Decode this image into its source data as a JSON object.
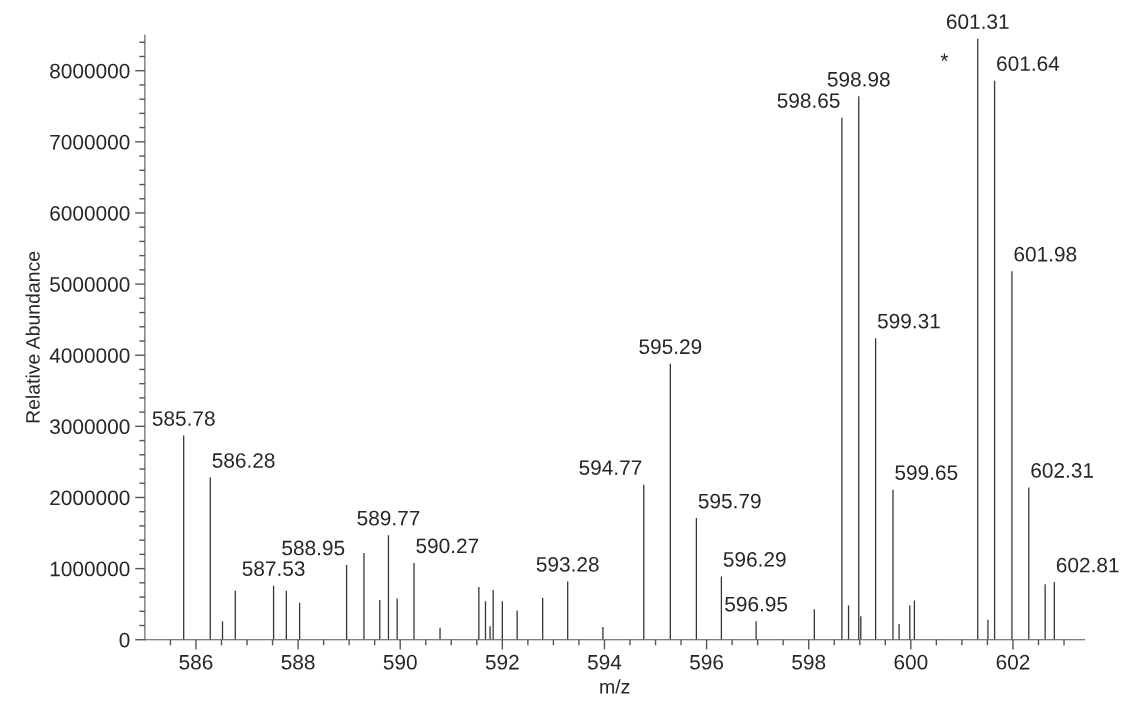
{
  "chart_data": {
    "type": "bar",
    "xlabel": "m/z",
    "ylabel": "Relative Abundance",
    "color": "#333333",
    "grid": false,
    "legend": false,
    "x": [
      585.76,
      586.28,
      586.52,
      586.77,
      587.52,
      587.77,
      588.03,
      588.95,
      589.29,
      589.6,
      589.77,
      589.94,
      590.27,
      590.78,
      591.54,
      591.67,
      591.76,
      591.82,
      592.0,
      592.29,
      592.79,
      593.28,
      593.97,
      594.77,
      595.29,
      595.8,
      596.29,
      596.97,
      598.11,
      598.65,
      598.78,
      598.98,
      599.02,
      599.31,
      599.65,
      599.77,
      599.98,
      600.07,
      601.31,
      601.51,
      601.64,
      601.98,
      602.31,
      602.63,
      602.81
    ],
    "values": [
      2870000,
      2280000,
      260000,
      690000,
      760000,
      690000,
      520000,
      1050000,
      1220000,
      560000,
      1470000,
      580000,
      1080000,
      170000,
      740000,
      540000,
      190000,
      700000,
      540000,
      410000,
      590000,
      820000,
      180000,
      2180000,
      3880000,
      1710000,
      890000,
      260000,
      430000,
      7340000,
      480000,
      7640000,
      330000,
      4240000,
      2110000,
      220000,
      480000,
      550000,
      8450000,
      280000,
      7860000,
      5180000,
      2140000,
      780000,
      810000
    ],
    "xlim": [
      585,
      603.4
    ],
    "ylim": [
      0,
      8500000
    ],
    "xticks": [
      {
        "value": 585.5,
        "label": null
      },
      {
        "value": 586,
        "label": "586"
      },
      {
        "value": 586.5,
        "label": null
      },
      {
        "value": 587,
        "label": null
      },
      {
        "value": 587.5,
        "label": null
      },
      {
        "value": 588,
        "label": "588"
      },
      {
        "value": 588.5,
        "label": null
      },
      {
        "value": 589,
        "label": null
      },
      {
        "value": 589.5,
        "label": null
      },
      {
        "value": 590,
        "label": "590"
      },
      {
        "value": 590.5,
        "label": null
      },
      {
        "value": 591,
        "label": null
      },
      {
        "value": 591.5,
        "label": null
      },
      {
        "value": 592,
        "label": "592"
      },
      {
        "value": 592.5,
        "label": null
      },
      {
        "value": 593,
        "label": null
      },
      {
        "value": 593.5,
        "label": null
      },
      {
        "value": 594,
        "label": "594"
      },
      {
        "value": 594.5,
        "label": null
      },
      {
        "value": 595,
        "label": null
      },
      {
        "value": 595.5,
        "label": null
      },
      {
        "value": 596,
        "label": "596"
      },
      {
        "value": 596.5,
        "label": null
      },
      {
        "value": 597,
        "label": null
      },
      {
        "value": 597.5,
        "label": null
      },
      {
        "value": 598,
        "label": "598"
      },
      {
        "value": 598.5,
        "label": null
      },
      {
        "value": 599,
        "label": null
      },
      {
        "value": 599.5,
        "label": null
      },
      {
        "value": 600,
        "label": "600"
      },
      {
        "value": 600.5,
        "label": null
      },
      {
        "value": 601,
        "label": null
      },
      {
        "value": 601.5,
        "label": null
      },
      {
        "value": 602,
        "label": "602"
      },
      {
        "value": 602.5,
        "label": null
      },
      {
        "value": 603,
        "label": null
      }
    ],
    "yticks": [
      0,
      {
        "value": 200000,
        "label": null
      },
      {
        "value": 400000,
        "label": null
      },
      {
        "value": 600000,
        "label": null
      },
      {
        "value": 800000,
        "label": null
      },
      1000000,
      {
        "value": 1200000,
        "label": null
      },
      {
        "value": 1400000,
        "label": null
      },
      {
        "value": 1600000,
        "label": null
      },
      {
        "value": 1800000,
        "label": null
      },
      2000000,
      {
        "value": 2200000,
        "label": null
      },
      {
        "value": 2400000,
        "label": null
      },
      {
        "value": 2600000,
        "label": null
      },
      {
        "value": 2800000,
        "label": null
      },
      3000000,
      {
        "value": 3200000,
        "label": null
      },
      {
        "value": 3400000,
        "label": null
      },
      {
        "value": 3600000,
        "label": null
      },
      {
        "value": 3800000,
        "label": null
      },
      4000000,
      {
        "value": 4200000,
        "label": null
      },
      {
        "value": 4400000,
        "label": null
      },
      {
        "value": 4600000,
        "label": null
      },
      {
        "value": 4800000,
        "label": null
      },
      5000000,
      {
        "value": 5200000,
        "label": null
      },
      {
        "value": 5400000,
        "label": null
      },
      {
        "value": 5600000,
        "label": null
      },
      {
        "value": 5800000,
        "label": null
      },
      6000000,
      {
        "value": 6200000,
        "label": null
      },
      {
        "value": 6400000,
        "label": null
      },
      {
        "value": 6600000,
        "label": null
      },
      {
        "value": 6800000,
        "label": null
      },
      7000000,
      {
        "value": 7200000,
        "label": null
      },
      {
        "value": 7400000,
        "label": null
      },
      {
        "value": 7600000,
        "label": null
      },
      {
        "value": 7800000,
        "label": null
      },
      8000000,
      {
        "value": 8200000,
        "label": null
      },
      {
        "value": 8400000,
        "label": null
      }
    ],
    "annotations": [
      {
        "text": "585.78",
        "x": 585.76,
        "y": 2870000
      },
      {
        "text": "586.28",
        "x": 586.28,
        "y": 2280000
      },
      {
        "text": "587.53",
        "x": 587.52,
        "y": 760000
      },
      {
        "text": "588.95",
        "x": 588.95,
        "y": 1050000
      },
      {
        "text": "589.77",
        "x": 589.77,
        "y": 1470000
      },
      {
        "text": "590.27",
        "x": 590.27,
        "y": 1080000
      },
      {
        "text": "593.28",
        "x": 593.28,
        "y": 820000
      },
      {
        "text": "594.77",
        "x": 594.77,
        "y": 2180000
      },
      {
        "text": "595.29",
        "x": 595.29,
        "y": 3880000
      },
      {
        "text": "595.79",
        "x": 595.8,
        "y": 1710000
      },
      {
        "text": "596.29",
        "x": 596.29,
        "y": 890000
      },
      {
        "text": "596.95",
        "x": 596.97,
        "y": 260000
      },
      {
        "text": "598.65",
        "x": 598.65,
        "y": 7340000
      },
      {
        "text": "598.98",
        "x": 598.98,
        "y": 7640000
      },
      {
        "text": "599.31",
        "x": 599.31,
        "y": 4240000
      },
      {
        "text": "599.65",
        "x": 599.65,
        "y": 2110000
      },
      {
        "text": "601.31",
        "x": 601.31,
        "y": 8450000
      },
      {
        "text": "*",
        "x": 601.31,
        "y": 7900000
      },
      {
        "text": "601.64",
        "x": 601.64,
        "y": 7860000
      },
      {
        "text": "601.98",
        "x": 601.98,
        "y": 5180000
      },
      {
        "text": "602.31",
        "x": 602.31,
        "y": 2140000
      },
      {
        "text": "602.81",
        "x": 602.81,
        "y": 810000
      }
    ]
  }
}
